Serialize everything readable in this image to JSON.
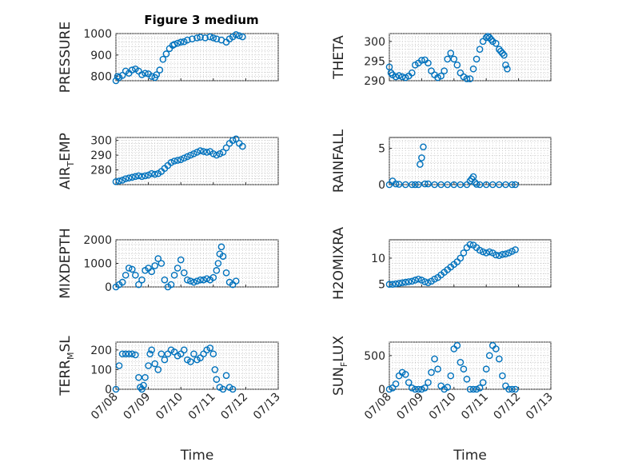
{
  "figure": {
    "title": "Figure 3 medium",
    "marker_color": "#0072bd",
    "grid": true
  },
  "chart_data": [
    {
      "type": "scatter",
      "ylabel": "PRESSURE",
      "xlabel": "",
      "xlim": [
        "07/08",
        "07/13"
      ],
      "ylim": [
        780,
        1000
      ],
      "yticks": [
        800,
        900,
        1000
      ],
      "xticks": [
        "07/08",
        "07/09",
        "07/10",
        "07/11",
        "07/12",
        "07/13"
      ],
      "x": [
        0,
        0.05,
        0.1,
        0.2,
        0.3,
        0.4,
        0.5,
        0.6,
        0.7,
        0.8,
        0.9,
        1,
        1.1,
        1.2,
        1.25,
        1.35,
        1.45,
        1.55,
        1.65,
        1.75,
        1.8,
        1.9,
        2,
        2.1,
        2.2,
        2.35,
        2.5,
        2.6,
        2.75,
        2.9,
        3.0,
        3.1,
        3.25,
        3.4,
        3.5,
        3.6,
        3.7,
        3.8,
        3.9
      ],
      "y": [
        780,
        800,
        795,
        805,
        825,
        815,
        830,
        835,
        825,
        808,
        815,
        812,
        800,
        795,
        808,
        830,
        880,
        905,
        930,
        945,
        950,
        955,
        960,
        962,
        970,
        975,
        980,
        983,
        980,
        985,
        980,
        975,
        970,
        960,
        975,
        985,
        995,
        990,
        985
      ]
    },
    {
      "type": "scatter",
      "ylabel": "THETA",
      "xlabel": "",
      "xlim": [
        "07/08",
        "07/13"
      ],
      "ylim": [
        290,
        302
      ],
      "yticks": [
        290,
        295,
        300
      ],
      "xticks": [
        "07/08",
        "07/09",
        "07/10",
        "07/11",
        "07/12",
        "07/13"
      ],
      "x": [
        0,
        0.05,
        0.1,
        0.2,
        0.3,
        0.4,
        0.5,
        0.6,
        0.7,
        0.8,
        0.9,
        1,
        1.1,
        1.2,
        1.3,
        1.4,
        1.5,
        1.6,
        1.7,
        1.8,
        1.9,
        2,
        2.1,
        2.2,
        2.3,
        2.4,
        2.5,
        2.6,
        2.7,
        2.8,
        2.9,
        3.0,
        3.05,
        3.1,
        3.15,
        3.2,
        3.3,
        3.4,
        3.45,
        3.5,
        3.55,
        3.6,
        3.65
      ],
      "y": [
        293.5,
        292,
        291.5,
        291,
        291.3,
        291,
        290.8,
        291.2,
        292,
        294,
        294.5,
        295.2,
        295.3,
        294.5,
        292.5,
        291.5,
        290.8,
        291.2,
        292.5,
        295.5,
        297,
        295.5,
        294,
        292,
        291,
        290.5,
        290.5,
        293,
        295.5,
        298,
        300,
        301,
        301.3,
        301,
        300.5,
        300,
        299.5,
        298,
        297.5,
        297,
        296.5,
        294,
        293
      ]
    },
    {
      "type": "scatter",
      "ylabel": "AIR_TEMP",
      "xlabel": "",
      "xlim": [
        "07/08",
        "07/13"
      ],
      "ylim": [
        270,
        302
      ],
      "yticks": [
        280,
        290,
        300
      ],
      "xticks": [
        "07/08",
        "07/09",
        "07/10",
        "07/11",
        "07/12",
        "07/13"
      ],
      "x": [
        0,
        0.1,
        0.2,
        0.3,
        0.4,
        0.5,
        0.6,
        0.7,
        0.8,
        0.9,
        1,
        1.1,
        1.2,
        1.3,
        1.4,
        1.5,
        1.6,
        1.7,
        1.8,
        1.9,
        2,
        2.1,
        2.2,
        2.3,
        2.4,
        2.5,
        2.6,
        2.7,
        2.8,
        2.9,
        3.0,
        3.1,
        3.2,
        3.3,
        3.4,
        3.5,
        3.6,
        3.7,
        3.8,
        3.9
      ],
      "y": [
        272,
        272.5,
        273,
        274,
        274.5,
        275,
        275.5,
        276,
        275.5,
        276,
        276.5,
        277.5,
        277,
        277.5,
        279,
        281,
        283,
        285,
        286,
        286.5,
        287,
        288,
        289,
        290,
        291,
        292,
        293,
        292.5,
        292,
        292.5,
        291,
        290,
        291,
        292,
        295,
        298,
        300,
        301,
        298,
        296
      ]
    },
    {
      "type": "scatter",
      "ylabel": "RAINFALL",
      "xlabel": "",
      "xlim": [
        "07/08",
        "07/13"
      ],
      "ylim": [
        0,
        6.5
      ],
      "yticks": [
        0,
        5
      ],
      "xticks": [
        "07/08",
        "07/09",
        "07/10",
        "07/11",
        "07/12",
        "07/13"
      ],
      "x": [
        0,
        0.1,
        0.2,
        0.3,
        0.5,
        0.7,
        0.8,
        0.9,
        0.95,
        1.0,
        1.05,
        1.1,
        1.2,
        1.4,
        1.6,
        1.8,
        2.0,
        2.2,
        2.4,
        2.5,
        2.55,
        2.6,
        2.65,
        2.7,
        2.8,
        3.0,
        3.2,
        3.4,
        3.6,
        3.8,
        3.9
      ],
      "y": [
        0,
        0.5,
        0.1,
        0.05,
        0,
        0,
        0,
        0,
        2.8,
        3.7,
        5.2,
        0.1,
        0.1,
        0,
        0,
        0,
        0,
        0,
        0,
        0.5,
        0.8,
        1.1,
        0.3,
        0.05,
        0,
        0,
        0,
        0,
        0,
        0,
        0
      ]
    },
    {
      "type": "scatter",
      "ylabel": "MIXDEPTH",
      "xlabel": "",
      "xlim": [
        "07/08",
        "07/13"
      ],
      "ylim": [
        0,
        2000
      ],
      "yticks": [
        0,
        1000,
        2000
      ],
      "xticks": [
        "07/08",
        "07/09",
        "07/10",
        "07/11",
        "07/12",
        "07/13"
      ],
      "x": [
        0,
        0.1,
        0.2,
        0.3,
        0.4,
        0.5,
        0.6,
        0.7,
        0.8,
        0.9,
        1.0,
        1.1,
        1.2,
        1.3,
        1.4,
        1.5,
        1.6,
        1.7,
        1.8,
        1.9,
        2.0,
        2.1,
        2.2,
        2.3,
        2.4,
        2.5,
        2.6,
        2.7,
        2.8,
        2.9,
        3.0,
        3.1,
        3.15,
        3.2,
        3.25,
        3.3,
        3.4,
        3.5,
        3.6,
        3.7
      ],
      "y": [
        0,
        100,
        200,
        500,
        800,
        750,
        500,
        100,
        300,
        700,
        800,
        650,
        900,
        1200,
        1000,
        300,
        0,
        100,
        500,
        800,
        1150,
        600,
        300,
        250,
        200,
        250,
        300,
        300,
        350,
        300,
        400,
        700,
        1000,
        1400,
        1700,
        1300,
        600,
        200,
        100,
        250
      ]
    },
    {
      "type": "scatter",
      "ylabel": "H2OMIXRA",
      "xlabel": "",
      "xlim": [
        "07/08",
        "07/13"
      ],
      "ylim": [
        4.5,
        13.5
      ],
      "yticks": [
        5,
        10
      ],
      "xticks": [
        "07/08",
        "07/09",
        "07/10",
        "07/11",
        "07/12",
        "07/13"
      ],
      "x": [
        0,
        0.1,
        0.2,
        0.3,
        0.4,
        0.5,
        0.6,
        0.7,
        0.8,
        0.9,
        1.0,
        1.1,
        1.2,
        1.3,
        1.4,
        1.5,
        1.6,
        1.7,
        1.8,
        1.9,
        2.0,
        2.1,
        2.2,
        2.3,
        2.4,
        2.5,
        2.6,
        2.7,
        2.8,
        2.9,
        3.0,
        3.1,
        3.2,
        3.3,
        3.4,
        3.5,
        3.6,
        3.7,
        3.8,
        3.9
      ],
      "y": [
        5,
        5,
        5.1,
        5.2,
        5.3,
        5.4,
        5.5,
        5.6,
        5.8,
        6.0,
        5.8,
        5.5,
        5.3,
        5.6,
        6.0,
        6.3,
        6.8,
        7.3,
        7.8,
        8.3,
        8.8,
        9.3,
        10,
        11,
        12,
        12.6,
        12.5,
        12.0,
        11.5,
        11.2,
        11,
        11.2,
        11.0,
        10.6,
        10.5,
        10.7,
        10.8,
        11.0,
        11.3,
        11.6
      ]
    },
    {
      "type": "scatter",
      "ylabel": "TERR_MSL",
      "xlabel": "Time",
      "xlim": [
        "07/08",
        "07/13"
      ],
      "ylim": [
        0,
        240
      ],
      "yticks": [
        0,
        100,
        200
      ],
      "xticks": [
        "07/08",
        "07/09",
        "07/10",
        "07/11",
        "07/12",
        "07/13"
      ],
      "x": [
        0,
        0.1,
        0.2,
        0.3,
        0.4,
        0.5,
        0.6,
        0.7,
        0.75,
        0.8,
        0.85,
        0.9,
        1.0,
        1.05,
        1.1,
        1.2,
        1.3,
        1.4,
        1.5,
        1.6,
        1.7,
        1.8,
        1.9,
        2.0,
        2.1,
        2.2,
        2.3,
        2.4,
        2.5,
        2.6,
        2.7,
        2.8,
        2.9,
        3.0,
        3.05,
        3.1,
        3.2,
        3.3,
        3.4,
        3.5,
        3.6
      ],
      "y": [
        0,
        120,
        180,
        180,
        180,
        180,
        175,
        60,
        10,
        0,
        20,
        60,
        120,
        180,
        200,
        130,
        100,
        180,
        150,
        180,
        200,
        190,
        170,
        180,
        200,
        150,
        140,
        180,
        150,
        160,
        180,
        200,
        210,
        180,
        100,
        50,
        10,
        0,
        70,
        10,
        0
      ]
    },
    {
      "type": "scatter",
      "ylabel": "SUN_FLUX",
      "xlabel": "Time",
      "xlim": [
        "07/08",
        "07/13"
      ],
      "ylim": [
        0,
        700
      ],
      "yticks": [
        0,
        500
      ],
      "xticks": [
        "07/08",
        "07/09",
        "07/10",
        "07/11",
        "07/12",
        "07/13"
      ],
      "x": [
        0,
        0.1,
        0.2,
        0.3,
        0.4,
        0.5,
        0.6,
        0.7,
        0.8,
        0.9,
        1.0,
        1.1,
        1.2,
        1.3,
        1.4,
        1.5,
        1.6,
        1.7,
        1.8,
        1.9,
        2.0,
        2.1,
        2.2,
        2.3,
        2.4,
        2.5,
        2.6,
        2.7,
        2.8,
        2.9,
        3.0,
        3.1,
        3.2,
        3.3,
        3.4,
        3.5,
        3.6,
        3.7,
        3.8,
        3.9
      ],
      "y": [
        0,
        20,
        80,
        200,
        250,
        220,
        100,
        20,
        0,
        0,
        0,
        20,
        100,
        250,
        450,
        300,
        50,
        0,
        30,
        200,
        600,
        650,
        400,
        300,
        150,
        0,
        0,
        0,
        20,
        100,
        300,
        500,
        650,
        600,
        450,
        200,
        50,
        0,
        0,
        0
      ]
    }
  ]
}
